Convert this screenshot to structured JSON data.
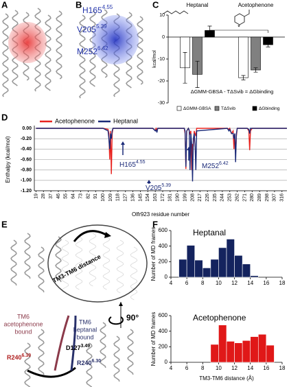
{
  "panel_labels": [
    "A",
    "B",
    "C",
    "D",
    "E",
    "F"
  ],
  "panel_b": {
    "labels": [
      {
        "label": "H165",
        "sup": "4.55"
      },
      {
        "label": "V205",
        "sup": "5.39"
      },
      {
        "label": "M252",
        "sup": "6.42"
      }
    ]
  },
  "panel_e": {
    "circle_label": "TM3-TM6 distance",
    "rotation": "90°",
    "tm6_acetophenone": [
      "TM6",
      "acetophenone",
      "bound"
    ],
    "tm6_heptanal": [
      "TM6",
      "heptanal",
      "bound"
    ],
    "labels": [
      {
        "label": "D127",
        "sup": "3.49"
      },
      {
        "label": "R240",
        "sup": "6.30"
      },
      {
        "label": "R240",
        "sup": "6.30"
      }
    ]
  },
  "chart_data": [
    {
      "type": "bar",
      "y_label": "kcal/mol",
      "categories": [
        "Heptanal",
        "Acetophenone"
      ],
      "series": [
        {
          "name": "ΔGMM-GBSA",
          "color": "#ffffff",
          "values": [
            -14,
            -18.5
          ],
          "errors": [
            7,
            1
          ]
        },
        {
          "name": "TΔSvib",
          "color": "#808080",
          "values": [
            -17,
            -15
          ],
          "errors": [
            6,
            1
          ]
        },
        {
          "name": "ΔGbinding",
          "color": "#000000",
          "values": [
            3,
            -3.5
          ],
          "errors": [
            2,
            1
          ]
        }
      ],
      "ylim": [
        -30,
        10
      ],
      "yticks": [
        -30,
        -20,
        -10,
        0,
        10
      ],
      "equation": "ΔGMM-GBSA - TΔSvib = ΔGbinding",
      "significance": "*"
    },
    {
      "type": "line",
      "x_label": "Olfr923 residue number",
      "y_label": "Enthalpy (kcal/mol)",
      "x": [
        19,
        100,
        106,
        107,
        108,
        109,
        110,
        111,
        112,
        160,
        163,
        164,
        165,
        166,
        198,
        199,
        200,
        201,
        203,
        204,
        205,
        206,
        207,
        208,
        209,
        210,
        211,
        212,
        213,
        250,
        252,
        253,
        255,
        257,
        258,
        259,
        260,
        261,
        262,
        274,
        276,
        277,
        278,
        280,
        300,
        322
      ],
      "series": [
        {
          "name": "Acetophenone",
          "color": "#e8231f",
          "values": [
            0,
            0,
            -0.02,
            -0.1,
            -0.6,
            -0.05,
            -0.88,
            -0.1,
            0,
            0,
            -0.04,
            0,
            -0.03,
            0,
            0,
            -0.1,
            -0.78,
            -0.05,
            0,
            -0.05,
            -0.1,
            -0.05,
            -0.8,
            -0.3,
            -0.35,
            -0.05,
            -0.1,
            -0.15,
            0,
            0,
            -0.02,
            0,
            -0.1,
            -0.05,
            -0.4,
            -0.1,
            -0.5,
            -0.15,
            0,
            0,
            -0.05,
            -0.42,
            -0.05,
            0,
            0,
            0
          ]
        },
        {
          "name": "Heptanal",
          "color": "#1b2a78",
          "values": [
            0,
            0,
            -0.05,
            -0.2,
            -0.4,
            -0.1,
            -0.2,
            -0.05,
            0,
            0,
            -0.05,
            -0.03,
            -0.08,
            0,
            0,
            -0.05,
            -0.74,
            -0.05,
            0,
            -0.03,
            -0.8,
            -0.1,
            -0.3,
            -1.02,
            -0.2,
            -0.1,
            -0.3,
            -0.8,
            -0.05,
            0,
            -0.05,
            -0.02,
            -0.1,
            -0.1,
            -0.2,
            -0.1,
            -0.65,
            -0.1,
            0,
            0,
            -0.02,
            -0.1,
            0,
            0,
            0,
            0
          ]
        }
      ],
      "xlim": [
        17,
        322
      ],
      "xticks": [
        19,
        28,
        37,
        46,
        55,
        64,
        73,
        82,
        91,
        100,
        109,
        118,
        127,
        136,
        145,
        154,
        163,
        172,
        181,
        190,
        199,
        208,
        217,
        226,
        235,
        244,
        253,
        262,
        271,
        280,
        289,
        298,
        307,
        316
      ],
      "ylim": [
        -1.2,
        0
      ],
      "yticks": [
        {
          "value": 0,
          "label": "0.00"
        },
        {
          "value": -0.2,
          "label": "-0.20"
        },
        {
          "value": -0.4,
          "label": "-0.40"
        },
        {
          "value": -0.6,
          "label": "-0.60"
        },
        {
          "value": -0.8,
          "label": "-0.80"
        },
        {
          "value": -1,
          "label": "-1.00"
        },
        {
          "value": -1.2,
          "label": "-1.20"
        }
      ],
      "grid": true,
      "annotations": [
        {
          "label": "H165",
          "sup": "4.55"
        },
        {
          "label": "V205",
          "sup": "5.39"
        },
        {
          "label": "M252",
          "sup": "6.42"
        }
      ]
    },
    {
      "type": "histogram",
      "title": "Heptanal",
      "y_label": "Number of MD frames",
      "color": "#14235e",
      "bins": [
        5,
        6,
        7,
        8,
        9,
        10,
        11,
        12,
        13,
        14,
        15
      ],
      "values": [
        230,
        410,
        220,
        120,
        230,
        380,
        490,
        280,
        170,
        20
      ],
      "xlim": [
        4,
        18
      ],
      "xticks": [
        4,
        6,
        8,
        10,
        12,
        14,
        16,
        18
      ],
      "ylim": [
        0,
        600
      ],
      "yticks": [
        0,
        200,
        400,
        600
      ]
    },
    {
      "type": "histogram",
      "title": "Acetophenone",
      "x_label": "TM3-TM6 distance (Å)",
      "y_label": "Number of MD frames",
      "color": "#e01818",
      "bins": [
        9,
        10,
        11,
        12,
        13,
        14,
        15,
        16,
        17
      ],
      "values": [
        230,
        480,
        270,
        250,
        280,
        330,
        360,
        220
      ],
      "xlim": [
        4,
        18
      ],
      "xticks": [
        4,
        6,
        8,
        10,
        12,
        14,
        16,
        18
      ],
      "ylim": [
        0,
        600
      ],
      "yticks": [
        0,
        200,
        400,
        600
      ]
    }
  ]
}
